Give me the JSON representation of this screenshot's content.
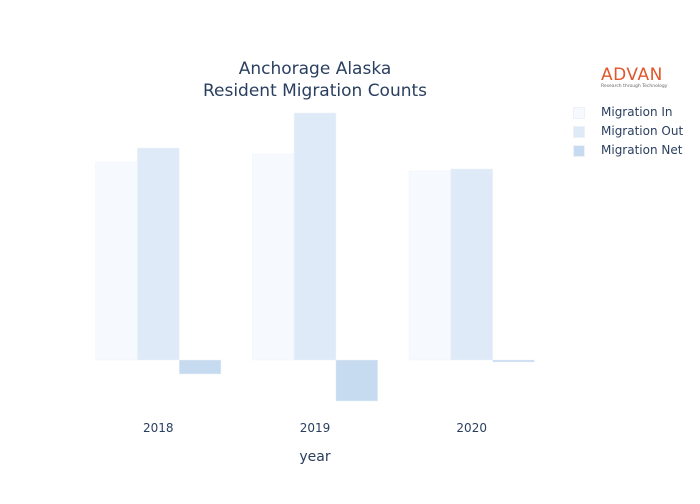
{
  "chart_data": {
    "type": "bar",
    "title_lines": [
      "Anchorage Alaska",
      "Resident Migration Counts"
    ],
    "xlabel": "year",
    "ylabel": "",
    "categories": [
      "2018",
      "2019",
      "2020"
    ],
    "series": [
      {
        "name": "Migration In",
        "values": [
          19800,
          20600,
          18900
        ],
        "color": "#f6f9fd"
      },
      {
        "name": "Migration Out",
        "values": [
          21200,
          24700,
          19100
        ],
        "color": "#deeaf7"
      },
      {
        "name": "Migration Net",
        "values": [
          -1400,
          -4100,
          -200
        ],
        "color": "#c6dbef"
      }
    ],
    "ylim": [
      -5000,
      26000
    ],
    "grid": false,
    "yticks_visible": false,
    "legend": "top-right",
    "barmode": "group"
  },
  "logo": {
    "name": "ADVAN",
    "tagline": "Research through Technology"
  }
}
